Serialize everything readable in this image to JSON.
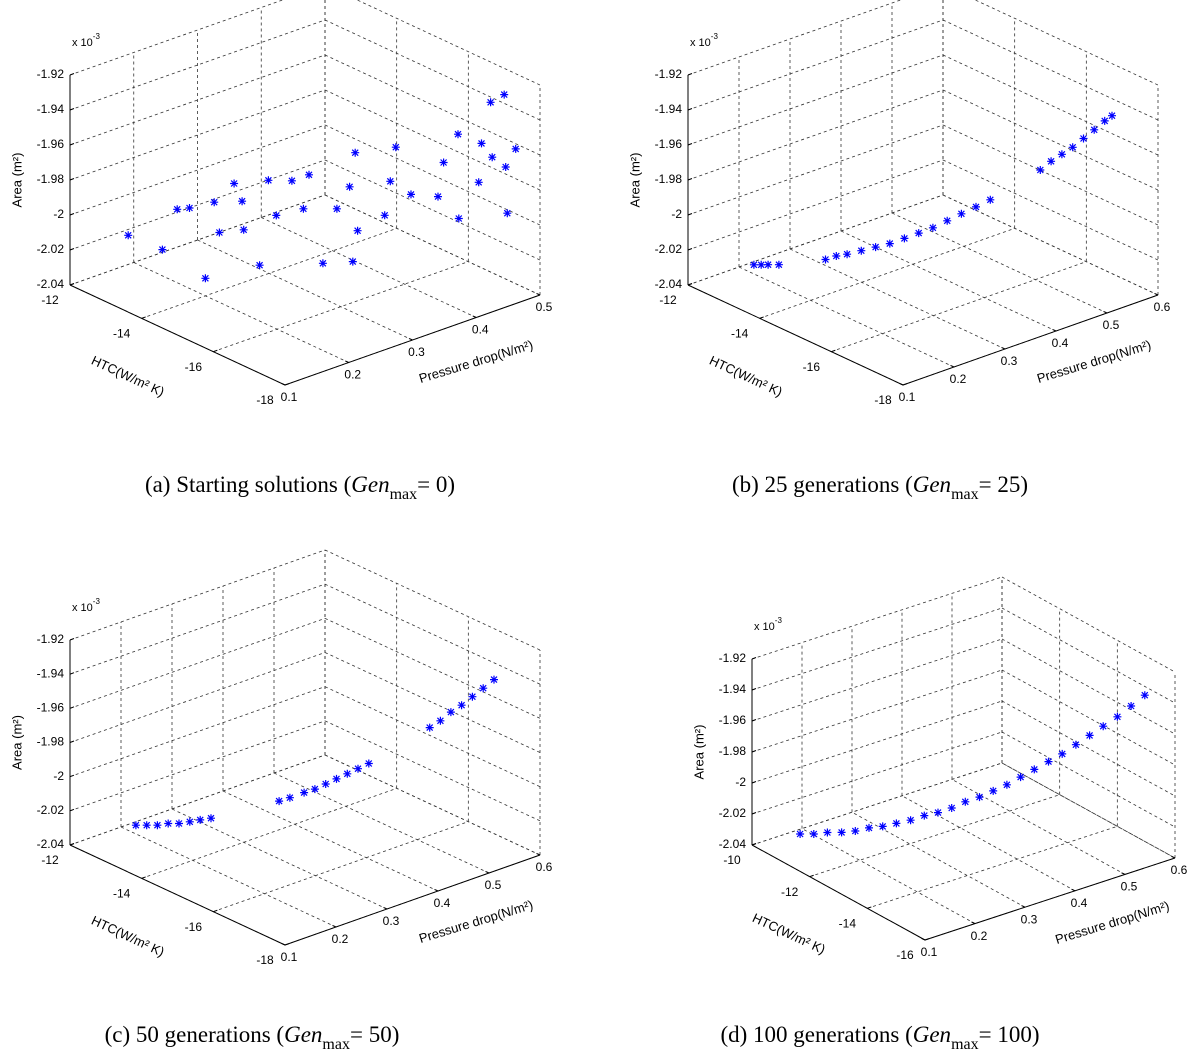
{
  "chart_data": [
    {
      "type": "scatter3d",
      "caption": {
        "prefix": "(a) Starting solutions (",
        "italic": "Gen",
        "sub": "max",
        "suffix": "= 0)"
      },
      "xlabel": "Pressure drop(N/m²)",
      "ylabel": "HTC(W/m² K)",
      "zlabel": "Area (m²)",
      "z_multiplier": {
        "base": "x 10",
        "exponent": "-3"
      },
      "xlim": [
        0.1,
        0.5
      ],
      "xticks": [
        0.1,
        0.2,
        0.3,
        0.4,
        0.5
      ],
      "ylim": [
        -18,
        -12
      ],
      "yticks": [
        -12,
        -14,
        -16,
        -18
      ],
      "zlim": [
        -2.04,
        -1.92
      ],
      "zticks": [
        -2.04,
        -2.02,
        -2,
        -1.98,
        -1.96,
        -1.94,
        -1.92
      ],
      "color": "#0000ff",
      "grid": true,
      "x": [
        0.18,
        0.2,
        0.22,
        0.24,
        0.25,
        0.27,
        0.26,
        0.28,
        0.3,
        0.29,
        0.31,
        0.32,
        0.33,
        0.35,
        0.34,
        0.36,
        0.37,
        0.38,
        0.4,
        0.39,
        0.41,
        0.42,
        0.43,
        0.44,
        0.45,
        0.46,
        0.3,
        0.24,
        0.47,
        0.48,
        0.46,
        0.47,
        0.49,
        0.45,
        0.49,
        0.5,
        0.2,
        0.33
      ],
      "y": [
        -12.2,
        -12.8,
        -13.2,
        -12.5,
        -13.5,
        -13.0,
        -14.0,
        -13.6,
        -14.2,
        -13.2,
        -13.8,
        -14.6,
        -14.1,
        -15.0,
        -14.4,
        -15.4,
        -15.0,
        -15.8,
        -15.6,
        -14.8,
        -16.0,
        -15.4,
        -16.4,
        -16.8,
        -16.2,
        -17.0,
        -15.5,
        -14.8,
        -17.2,
        -17.4,
        -17.8,
        -16.9,
        -17.5,
        -16.6,
        -16.8,
        -17.0,
        -14.0,
        -15.8
      ],
      "z": [
        -2.02,
        -2.025,
        -2.0,
        -2.01,
        -2.015,
        -2.005,
        -2.01,
        -2.0,
        -2.005,
        -1.995,
        -1.99,
        -2.0,
        -1.99,
        -2.0,
        -1.985,
        -2.01,
        -1.99,
        -2.0,
        -1.985,
        -1.975,
        -1.99,
        -1.97,
        -1.99,
        -2.0,
        -1.975,
        -1.98,
        -2.02,
        -2.02,
        -1.965,
        -1.97,
        -1.99,
        -1.96,
        -1.96,
        -1.955,
        -1.94,
        -1.935,
        -2.03,
        -2.02
      ]
    },
    {
      "type": "scatter3d",
      "caption": {
        "prefix": "(b) 25 generations (",
        "italic": "Gen",
        "sub": "max",
        "suffix": "= 25)"
      },
      "xlabel": "Pressure drop(N/m²)",
      "ylabel": "HTC(W/m² K)",
      "zlabel": "Area (m²)",
      "z_multiplier": {
        "base": "x 10",
        "exponent": "-3"
      },
      "xlim": [
        0.1,
        0.6
      ],
      "xticks": [
        0.1,
        0.2,
        0.3,
        0.4,
        0.5,
        0.6
      ],
      "ylim": [
        -18,
        -12
      ],
      "yticks": [
        -12,
        -14,
        -16,
        -18
      ],
      "zlim": [
        -2.04,
        -1.92
      ],
      "zticks": [
        -2.04,
        -2.02,
        -2,
        -1.98,
        -1.96,
        -1.94,
        -1.92
      ],
      "color": "#0000ff",
      "grid": true,
      "x": [
        0.18,
        0.188,
        0.196,
        0.208,
        0.26,
        0.272,
        0.284,
        0.3,
        0.316,
        0.332,
        0.348,
        0.364,
        0.38,
        0.396,
        0.412,
        0.428,
        0.444,
        0.5,
        0.512,
        0.524,
        0.536,
        0.548,
        0.56,
        0.572,
        0.58
      ],
      "y": [
        -12.7,
        -12.79,
        -12.87,
        -13.0,
        -13.56,
        -13.69,
        -13.82,
        -13.99,
        -14.16,
        -14.33,
        -14.51,
        -14.68,
        -14.85,
        -15.02,
        -15.19,
        -15.37,
        -15.54,
        -16.14,
        -16.27,
        -16.4,
        -16.53,
        -16.66,
        -16.79,
        -16.91,
        -17.0
      ],
      "z": [
        -2.03,
        -2.03,
        -2.03,
        -2.03,
        -2.027,
        -2.025,
        -2.024,
        -2.022,
        -2.02,
        -2.018,
        -2.015,
        -2.012,
        -2.009,
        -2.005,
        -2.001,
        -1.997,
        -1.993,
        -1.976,
        -1.971,
        -1.967,
        -1.963,
        -1.958,
        -1.953,
        -1.948,
        -1.945
      ]
    },
    {
      "type": "scatter3d",
      "caption": {
        "prefix": "(c) 50 generations (",
        "italic": "Gen",
        "sub": "max",
        "suffix": "= 50)"
      },
      "xlabel": "Pressure drop(N/m²)",
      "ylabel": "HTC(W/m² K)",
      "zlabel": "Area (m²)",
      "z_multiplier": {
        "base": "x 10",
        "exponent": "-3"
      },
      "xlim": [
        0.1,
        0.6
      ],
      "xticks": [
        0.1,
        0.2,
        0.3,
        0.4,
        0.5,
        0.6
      ],
      "ylim": [
        -18,
        -12
      ],
      "yticks": [
        -12,
        -14,
        -16,
        -18
      ],
      "zlim": [
        -2.04,
        -1.92
      ],
      "zticks": [
        -2.04,
        -2.02,
        -2,
        -1.98,
        -1.96,
        -1.94,
        -1.92
      ],
      "color": "#0000ff",
      "grid": true,
      "x": [
        0.18,
        0.192,
        0.204,
        0.216,
        0.228,
        0.24,
        0.252,
        0.264,
        0.34,
        0.352,
        0.368,
        0.38,
        0.392,
        0.404,
        0.416,
        0.428,
        0.44,
        0.508,
        0.52,
        0.532,
        0.544,
        0.556,
        0.568,
        0.58
      ],
      "y": [
        -12.7,
        -12.83,
        -12.96,
        -13.09,
        -13.22,
        -13.35,
        -13.47,
        -13.6,
        -14.42,
        -14.55,
        -14.72,
        -14.85,
        -14.98,
        -15.11,
        -15.24,
        -15.37,
        -15.5,
        -16.23,
        -16.36,
        -16.48,
        -16.61,
        -16.74,
        -16.87,
        -17.0
      ],
      "z": [
        -2.03,
        -2.03,
        -2.03,
        -2.029,
        -2.029,
        -2.028,
        -2.027,
        -2.026,
        -2.016,
        -2.014,
        -2.011,
        -2.009,
        -2.006,
        -2.003,
        -2.0,
        -1.997,
        -1.994,
        -1.973,
        -1.969,
        -1.964,
        -1.96,
        -1.955,
        -1.95,
        -1.945
      ]
    },
    {
      "type": "scatter3d",
      "caption": {
        "prefix": "(d) 100 generations (",
        "italic": "Gen",
        "sub": "max",
        "suffix": "= 100)"
      },
      "xlabel": "Pressure drop(N/m²)",
      "ylabel": "HTC(W/m² K)",
      "zlabel": "Area (m²)",
      "z_multiplier": {
        "base": "x 10",
        "exponent": "-3"
      },
      "xlim": [
        0.1,
        0.6
      ],
      "xticks": [
        0.1,
        0.2,
        0.3,
        0.4,
        0.5,
        0.6
      ],
      "ylim": [
        -16,
        -10
      ],
      "yticks": [
        -10,
        -12,
        -14,
        -16
      ],
      "zlim": [
        -2.04,
        -1.92
      ],
      "zticks": [
        -2.04,
        -2.02,
        -2,
        -1.98,
        -1.96,
        -1.94,
        -1.92
      ],
      "color": "#0000ff",
      "grid": true,
      "x": [
        0.15,
        0.167,
        0.184,
        0.202,
        0.219,
        0.236,
        0.253,
        0.27,
        0.288,
        0.305,
        0.322,
        0.339,
        0.356,
        0.374,
        0.391,
        0.408,
        0.425,
        0.442,
        0.46,
        0.477,
        0.494,
        0.511,
        0.528,
        0.546,
        0.563,
        0.58
      ],
      "y": [
        -10.8,
        -10.98,
        -11.16,
        -11.34,
        -11.52,
        -11.7,
        -11.88,
        -12.06,
        -12.24,
        -12.42,
        -12.6,
        -12.78,
        -12.96,
        -13.14,
        -13.32,
        -13.5,
        -13.68,
        -13.86,
        -14.04,
        -14.22,
        -14.4,
        -14.58,
        -14.76,
        -14.94,
        -15.12,
        -15.3
      ],
      "z": [
        -2.03,
        -2.03,
        -2.029,
        -2.029,
        -2.028,
        -2.026,
        -2.025,
        -2.023,
        -2.021,
        -2.018,
        -2.016,
        -2.013,
        -2.009,
        -2.006,
        -2.002,
        -1.998,
        -1.993,
        -1.988,
        -1.983,
        -1.978,
        -1.972,
        -1.966,
        -1.96,
        -1.954,
        -1.947,
        -1.94
      ]
    }
  ]
}
